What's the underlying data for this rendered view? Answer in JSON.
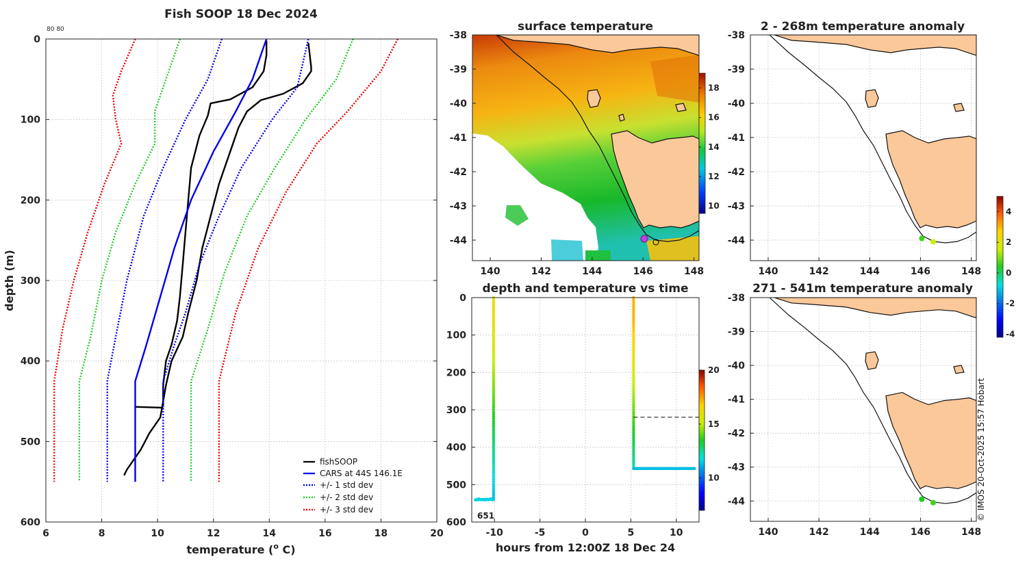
{
  "chart_data": [
    {
      "type": "line",
      "panel": "profile",
      "title": "Fish SOOP 18 Dec 2024",
      "corner_label": "80 80",
      "xlabel": "temperature (",
      "xlabel_sup": "o",
      "xlabel_end": " C)",
      "ylabel": "depth (m)",
      "xlim": [
        6,
        20
      ],
      "ylim": [
        600,
        0
      ],
      "xticks": [
        "6",
        "8",
        "10",
        "12",
        "14",
        "16",
        "18",
        "20"
      ],
      "yticks": [
        "0",
        "100",
        "200",
        "300",
        "400",
        "500",
        "600"
      ],
      "legend": [
        "fishSOOP",
        "CARS at 44S 146.1E",
        "+/- 1 std dev",
        "+/- 2 std dev",
        "+/- 3 std dev"
      ],
      "series": [
        {
          "name": "fishSOOP cast 1",
          "color": "#000000",
          "style": "solid",
          "points": [
            [
              13.9,
              2
            ],
            [
              13.9,
              20
            ],
            [
              13.8,
              40
            ],
            [
              13.4,
              60
            ],
            [
              12.6,
              75
            ],
            [
              11.9,
              80
            ],
            [
              11.8,
              95
            ],
            [
              11.5,
              120
            ],
            [
              11.2,
              160
            ],
            [
              11.1,
              200
            ],
            [
              11.0,
              240
            ],
            [
              10.9,
              280
            ],
            [
              10.8,
              320
            ],
            [
              10.7,
              350
            ],
            [
              10.5,
              380
            ],
            [
              10.3,
              400
            ],
            [
              10.2,
              430
            ],
            [
              10.2,
              457
            ]
          ]
        },
        {
          "name": "fishSOOP step",
          "color": "#000000",
          "style": "solid",
          "points": [
            [
              9.2,
              457
            ],
            [
              10.2,
              458
            ]
          ]
        },
        {
          "name": "fishSOOP cast 2",
          "color": "#000000",
          "style": "solid",
          "points": [
            [
              15.4,
              5
            ],
            [
              15.5,
              35
            ],
            [
              15.5,
              40
            ],
            [
              15.2,
              55
            ],
            [
              14.5,
              68
            ],
            [
              13.7,
              76
            ],
            [
              13.2,
              90
            ],
            [
              12.9,
              110
            ],
            [
              12.6,
              140
            ],
            [
              12.2,
              180
            ],
            [
              11.9,
              220
            ],
            [
              11.6,
              260
            ],
            [
              11.4,
              300
            ],
            [
              11.1,
              340
            ],
            [
              10.9,
              370
            ],
            [
              10.5,
              400
            ],
            [
              10.3,
              430
            ],
            [
              10.1,
              470
            ],
            [
              9.7,
              490
            ],
            [
              9.4,
              510
            ],
            [
              9.1,
              525
            ],
            [
              8.9,
              535
            ],
            [
              8.8,
              542
            ]
          ]
        },
        {
          "name": "CARS at 44S 146.1E",
          "color": "#0000ee",
          "style": "solid",
          "points": [
            [
              13.9,
              0
            ],
            [
              13.7,
              20
            ],
            [
              13.4,
              50
            ],
            [
              12.8,
              90
            ],
            [
              12.0,
              140
            ],
            [
              11.2,
              200
            ],
            [
              10.6,
              260
            ],
            [
              10.1,
              320
            ],
            [
              9.6,
              380
            ],
            [
              9.2,
              425
            ],
            [
              9.2,
              550
            ]
          ]
        },
        {
          "name": "+1 std dev",
          "color": "#0000ee",
          "style": "dotted",
          "points": [
            [
              15.4,
              0
            ],
            [
              15.0,
              60
            ],
            [
              14.1,
              100
            ],
            [
              13.0,
              160
            ],
            [
              12.2,
              220
            ],
            [
              11.5,
              280
            ],
            [
              11.0,
              340
            ],
            [
              10.6,
              380
            ],
            [
              10.2,
              425
            ],
            [
              10.2,
              550
            ]
          ]
        },
        {
          "name": "-1 std dev",
          "color": "#0000ee",
          "style": "dotted",
          "points": [
            [
              12.3,
              0
            ],
            [
              11.8,
              50
            ],
            [
              11.0,
              100
            ],
            [
              10.2,
              160
            ],
            [
              9.5,
              220
            ],
            [
              8.9,
              300
            ],
            [
              8.5,
              370
            ],
            [
              8.2,
              425
            ],
            [
              8.2,
              550
            ]
          ]
        },
        {
          "name": "+2 std dev",
          "color": "#22cc22",
          "style": "dotted",
          "points": [
            [
              17.0,
              0
            ],
            [
              16.4,
              50
            ],
            [
              15.3,
              100
            ],
            [
              14.2,
              160
            ],
            [
              13.2,
              220
            ],
            [
              12.4,
              290
            ],
            [
              11.8,
              360
            ],
            [
              11.2,
              425
            ],
            [
              11.2,
              550
            ]
          ]
        },
        {
          "name": "-2 std dev",
          "color": "#22cc22",
          "style": "dotted",
          "points": [
            [
              10.8,
              0
            ],
            [
              10.3,
              50
            ],
            [
              9.9,
              90
            ],
            [
              9.9,
              130
            ],
            [
              9.2,
              180
            ],
            [
              8.5,
              240
            ],
            [
              8.0,
              300
            ],
            [
              7.6,
              370
            ],
            [
              7.2,
              425
            ],
            [
              7.2,
              550
            ]
          ]
        },
        {
          "name": "+3 std dev",
          "color": "#ee0000",
          "style": "dotted",
          "points": [
            [
              18.6,
              0
            ],
            [
              18.0,
              40
            ],
            [
              16.8,
              90
            ],
            [
              15.7,
              130
            ],
            [
              14.6,
              190
            ],
            [
              13.6,
              260
            ],
            [
              12.8,
              340
            ],
            [
              12.2,
              425
            ],
            [
              12.2,
              550
            ]
          ]
        },
        {
          "name": "-3 std dev",
          "color": "#ee0000",
          "style": "dotted",
          "points": [
            [
              9.2,
              0
            ],
            [
              8.7,
              40
            ],
            [
              8.4,
              70
            ],
            [
              8.5,
              100
            ],
            [
              8.7,
              130
            ],
            [
              8.1,
              180
            ],
            [
              7.5,
              240
            ],
            [
              7.0,
              300
            ],
            [
              6.6,
              360
            ],
            [
              6.3,
              425
            ],
            [
              6.3,
              550
            ]
          ]
        }
      ]
    },
    {
      "type": "heatmap",
      "panel": "sst-map",
      "title": "surface temperature",
      "xlim": [
        139.3,
        148.2
      ],
      "ylim": [
        -44.6,
        -38
      ],
      "xticks": [
        "140",
        "142",
        "144",
        "146",
        "148"
      ],
      "yticks": [
        "-38",
        "-39",
        "-40",
        "-41",
        "-42",
        "-43",
        "-44"
      ],
      "colorbar": {
        "range": [
          9.5,
          19
        ],
        "ticks": [
          "10",
          "12",
          "14",
          "16",
          "18"
        ]
      }
    },
    {
      "type": "scatter",
      "panel": "depth-time",
      "title": "depth and temperature vs time",
      "xlabel": "hours from 12:00Z 18 Dec 24",
      "xlim": [
        -12.5,
        12.5
      ],
      "ylim": [
        600,
        0
      ],
      "xticks": [
        "-10",
        "-5",
        "0",
        "5",
        "10"
      ],
      "yticks": [
        "0",
        "100",
        "200",
        "300",
        "400",
        "500",
        "600"
      ],
      "annotation": "651",
      "dashed_line_depth": 320,
      "colorbar": {
        "range": [
          7,
          20
        ],
        "ticks": [
          "10",
          "15",
          "20"
        ]
      }
    },
    {
      "type": "scatter",
      "panel": "anomaly-upper",
      "title": "2 - 268m temperature anomaly",
      "xlim": [
        139.3,
        148.2
      ],
      "ylim": [
        -44.6,
        -38
      ],
      "xticks": [
        "140",
        "142",
        "144",
        "146",
        "148"
      ],
      "yticks": [
        "-38",
        "-39",
        "-40",
        "-41",
        "-42",
        "-43",
        "-44"
      ],
      "points": [
        {
          "lon": 146.05,
          "lat": -43.95,
          "anomaly": 0.6
        },
        {
          "lon": 146.5,
          "lat": -44.05,
          "anomaly": 1.6
        }
      ],
      "colorbar": {
        "range": [
          -4.2,
          5
        ],
        "ticks": [
          "-4",
          "-2",
          "0",
          "2",
          "4"
        ]
      }
    },
    {
      "type": "scatter",
      "panel": "anomaly-lower",
      "title": "271 - 541m temperature anomaly",
      "xlim": [
        139.3,
        148.2
      ],
      "ylim": [
        -44.6,
        -38
      ],
      "xticks": [
        "140",
        "142",
        "144",
        "146",
        "148"
      ],
      "yticks": [
        "-38",
        "-39",
        "-40",
        "-41",
        "-42",
        "-43",
        "-44"
      ],
      "points": [
        {
          "lon": 146.05,
          "lat": -43.95,
          "anomaly": 0.4
        },
        {
          "lon": 146.5,
          "lat": -44.05,
          "anomaly": 0.6
        }
      ]
    }
  ],
  "credit": "© IMOS 20-Oct-2025 15:57 Hobart"
}
